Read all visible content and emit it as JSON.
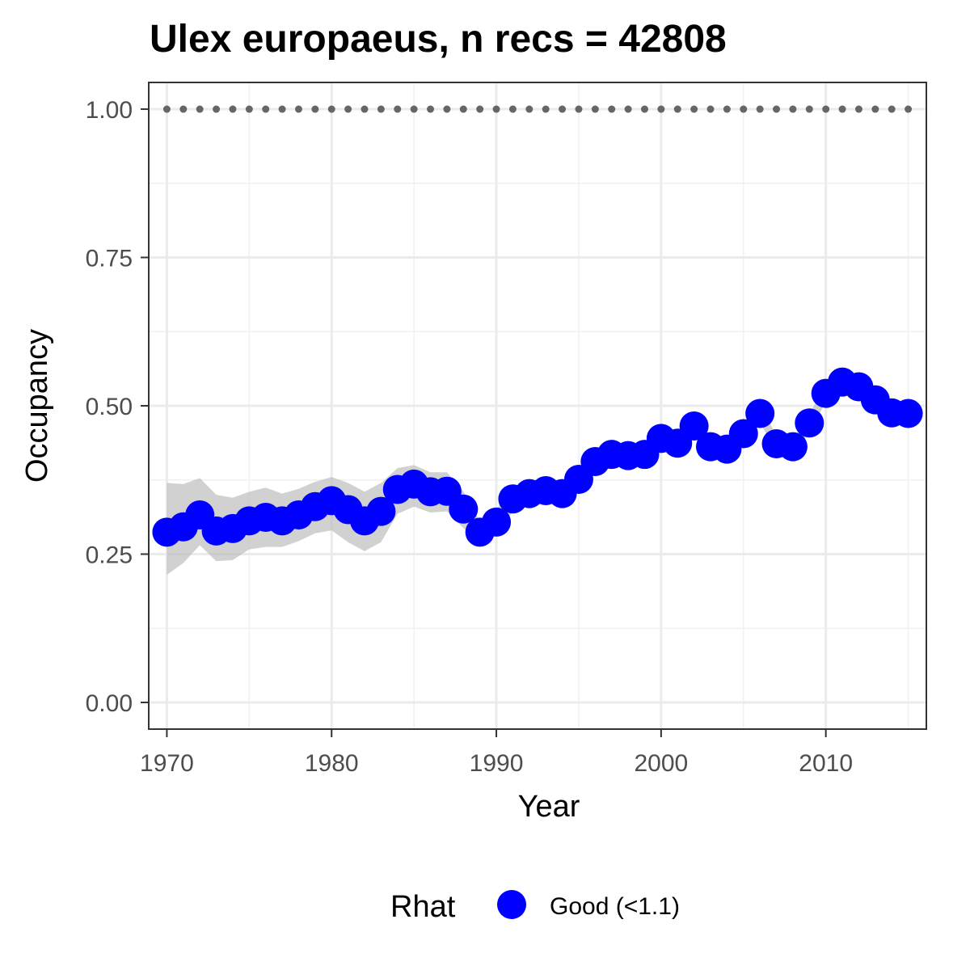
{
  "chart_data": {
    "type": "line",
    "title": "Ulex europaeus, n recs = 42808",
    "xlabel": "Year",
    "ylabel": "Occupancy",
    "xlim": [
      1968.9,
      1970.0,
      2015.0,
      2016.1
    ],
    "ylim": [
      -0.045,
      1.045
    ],
    "x_ticks": [
      1970,
      1980,
      1990,
      2000,
      2010
    ],
    "y_ticks": [
      0.0,
      0.25,
      0.5,
      0.75,
      1.0
    ],
    "y_tick_labels": [
      "0.00",
      "0.25",
      "0.50",
      "0.75",
      "1.00"
    ],
    "grid": true,
    "series": [
      {
        "name": "Good (<1.1)",
        "color": "#0000ff",
        "x": [
          1970,
          1971,
          1972,
          1973,
          1974,
          1975,
          1976,
          1977,
          1978,
          1979,
          1980,
          1981,
          1982,
          1983,
          1984,
          1985,
          1986,
          1987,
          1988,
          1989,
          1990,
          1991,
          1992,
          1993,
          1994,
          1995,
          1996,
          1997,
          1998,
          1999,
          2000,
          2001,
          2002,
          2003,
          2004,
          2005,
          2006,
          2007,
          2008,
          2009,
          2010,
          2011,
          2012,
          2013,
          2014,
          2015
        ],
        "y": [
          0.287,
          0.296,
          0.316,
          0.289,
          0.293,
          0.306,
          0.312,
          0.306,
          0.316,
          0.33,
          0.34,
          0.325,
          0.306,
          0.322,
          0.359,
          0.368,
          0.355,
          0.356,
          0.326,
          0.287,
          0.304,
          0.343,
          0.352,
          0.357,
          0.352,
          0.376,
          0.406,
          0.418,
          0.416,
          0.418,
          0.445,
          0.437,
          0.466,
          0.431,
          0.427,
          0.453,
          0.487,
          0.436,
          0.431,
          0.471,
          0.521,
          0.54,
          0.532,
          0.51,
          0.488,
          0.487
        ],
        "lower": [
          0.215,
          0.235,
          0.265,
          0.238,
          0.24,
          0.258,
          0.262,
          0.262,
          0.272,
          0.285,
          0.29,
          0.27,
          0.255,
          0.27,
          0.318,
          0.33,
          0.32,
          0.322,
          0.294,
          0.268,
          0.282,
          0.322,
          0.332,
          0.337,
          0.334,
          0.358,
          0.388,
          0.4,
          0.4,
          0.402,
          0.43,
          0.422,
          0.448,
          0.416,
          0.412,
          0.438,
          0.472,
          0.422,
          0.418,
          0.456,
          0.506,
          0.525,
          0.518,
          0.496,
          0.474,
          0.474
        ],
        "upper": [
          0.37,
          0.368,
          0.378,
          0.35,
          0.345,
          0.355,
          0.362,
          0.352,
          0.36,
          0.372,
          0.38,
          0.37,
          0.355,
          0.37,
          0.395,
          0.4,
          0.388,
          0.388,
          0.356,
          0.305,
          0.326,
          0.362,
          0.372,
          0.377,
          0.37,
          0.394,
          0.424,
          0.436,
          0.432,
          0.434,
          0.46,
          0.452,
          0.484,
          0.446,
          0.442,
          0.468,
          0.502,
          0.45,
          0.444,
          0.486,
          0.536,
          0.555,
          0.546,
          0.524,
          0.502,
          0.5
        ]
      }
    ],
    "reference_line": {
      "y": 1.0,
      "style": "dotted",
      "color": "#666666"
    },
    "band_color": "#bdbdbd",
    "legend": {
      "title": "Rhat",
      "position": "bottom",
      "items": [
        "Good (<1.1)"
      ]
    }
  }
}
